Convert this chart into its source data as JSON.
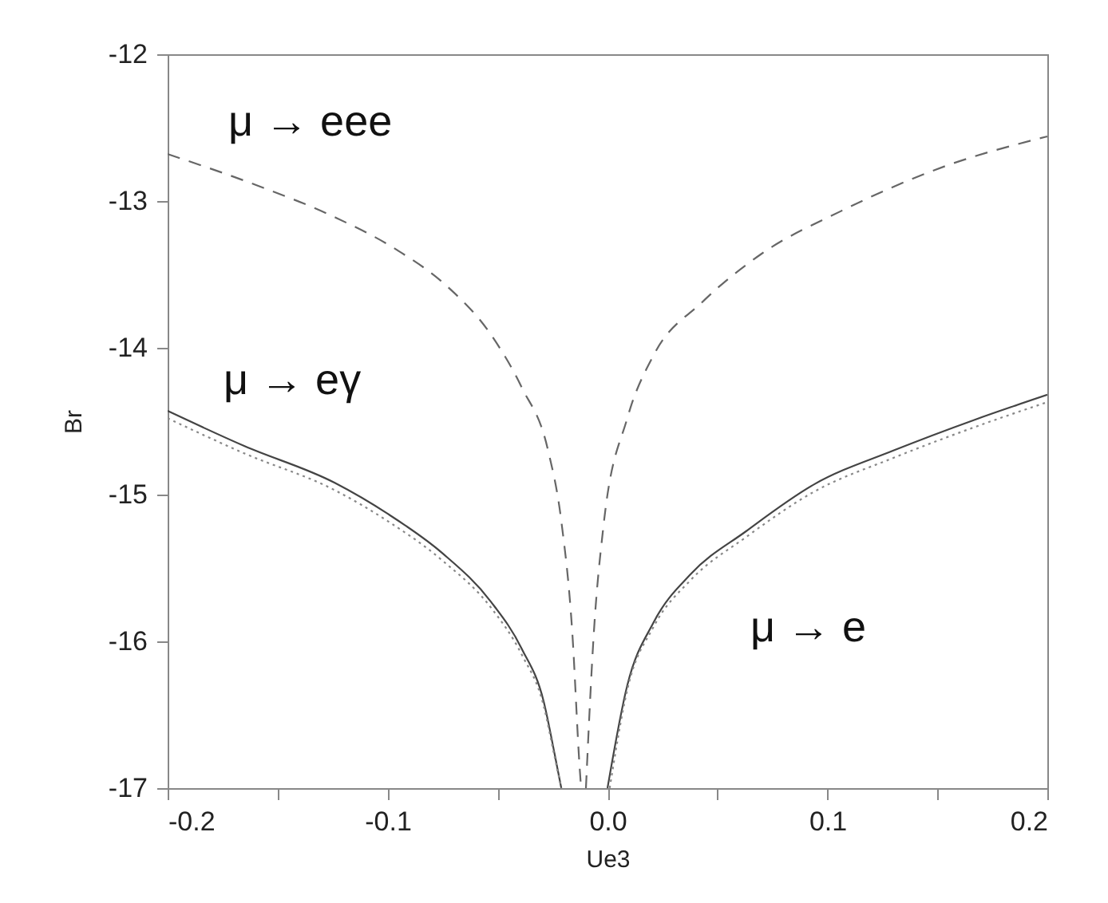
{
  "chart_data": {
    "type": "line",
    "xlabel": "Ue3",
    "ylabel": "Br",
    "xlim": [
      -0.2,
      0.2
    ],
    "ylim": [
      -17,
      -12
    ],
    "xticks": [
      -0.2,
      {
        "value": -0.15,
        "label": null
      },
      -0.1,
      {
        "value": -0.05,
        "label": null
      },
      {
        "value": 0,
        "label": "0.0"
      },
      {
        "value": 0.05,
        "label": null
      },
      0.1,
      {
        "value": 0.15,
        "label": null
      },
      0.2
    ],
    "yticks": [
      -17,
      -16,
      -15,
      -14,
      -13,
      -12
    ],
    "grid": false,
    "series": [
      {
        "color": "#666666",
        "line_style": "dashed",
        "x": [
          -0.2,
          -0.16,
          -0.124,
          -0.095,
          -0.073,
          -0.053,
          -0.039,
          -0.027,
          -0.021,
          -0.016,
          -0.0127,
          -0.012,
          -0.011,
          -0.0098,
          -0.0062,
          -0.0018,
          0.009,
          0.021,
          0.043,
          0.07,
          0.106,
          0.154,
          0.2
        ],
        "values": [
          -12.68,
          -12.89,
          -13.11,
          -13.34,
          -13.58,
          -13.91,
          -14.27,
          -14.7,
          -15.18,
          -15.94,
          -16.85,
          -17,
          null,
          -17,
          -15.94,
          -15.21,
          -14.48,
          -14.05,
          -13.69,
          -13.36,
          -13.07,
          -12.76,
          -12.56
        ]
      },
      {
        "color": "#444444",
        "line_style": "solid",
        "x": [
          -0.2,
          -0.165,
          -0.124,
          -0.1,
          -0.075,
          -0.053,
          -0.039,
          -0.029,
          -0.024,
          -0.021,
          -0.01,
          0.0,
          0.009,
          0.021,
          0.038,
          0.063,
          0.094,
          0.13,
          0.167,
          0.2
        ],
        "values": [
          -14.43,
          -14.67,
          -14.92,
          -15.13,
          -15.4,
          -15.73,
          -16.05,
          -16.41,
          -16.77,
          -17,
          null,
          -17,
          -16.3,
          -15.87,
          -15.54,
          -15.25,
          -14.93,
          -14.7,
          -14.49,
          -14.32
        ]
      },
      {
        "color": "#888888",
        "line_style": "dotted",
        "x": [
          -0.2,
          -0.165,
          -0.124,
          -0.1,
          -0.075,
          -0.053,
          -0.039,
          -0.029,
          -0.024,
          -0.021,
          -0.01,
          0.001,
          0.009,
          0.021,
          0.038,
          0.063,
          0.094,
          0.13,
          0.167,
          0.2
        ],
        "values": [
          -14.48,
          -14.72,
          -14.97,
          -15.18,
          -15.45,
          -15.77,
          -16.09,
          -16.44,
          -16.79,
          -17,
          null,
          -17,
          -16.33,
          -15.9,
          -15.58,
          -15.29,
          -14.98,
          -14.75,
          -14.54,
          -14.37
        ]
      }
    ],
    "annotations": [
      "μ → eee",
      "μ → eγ",
      "μ → e"
    ]
  }
}
